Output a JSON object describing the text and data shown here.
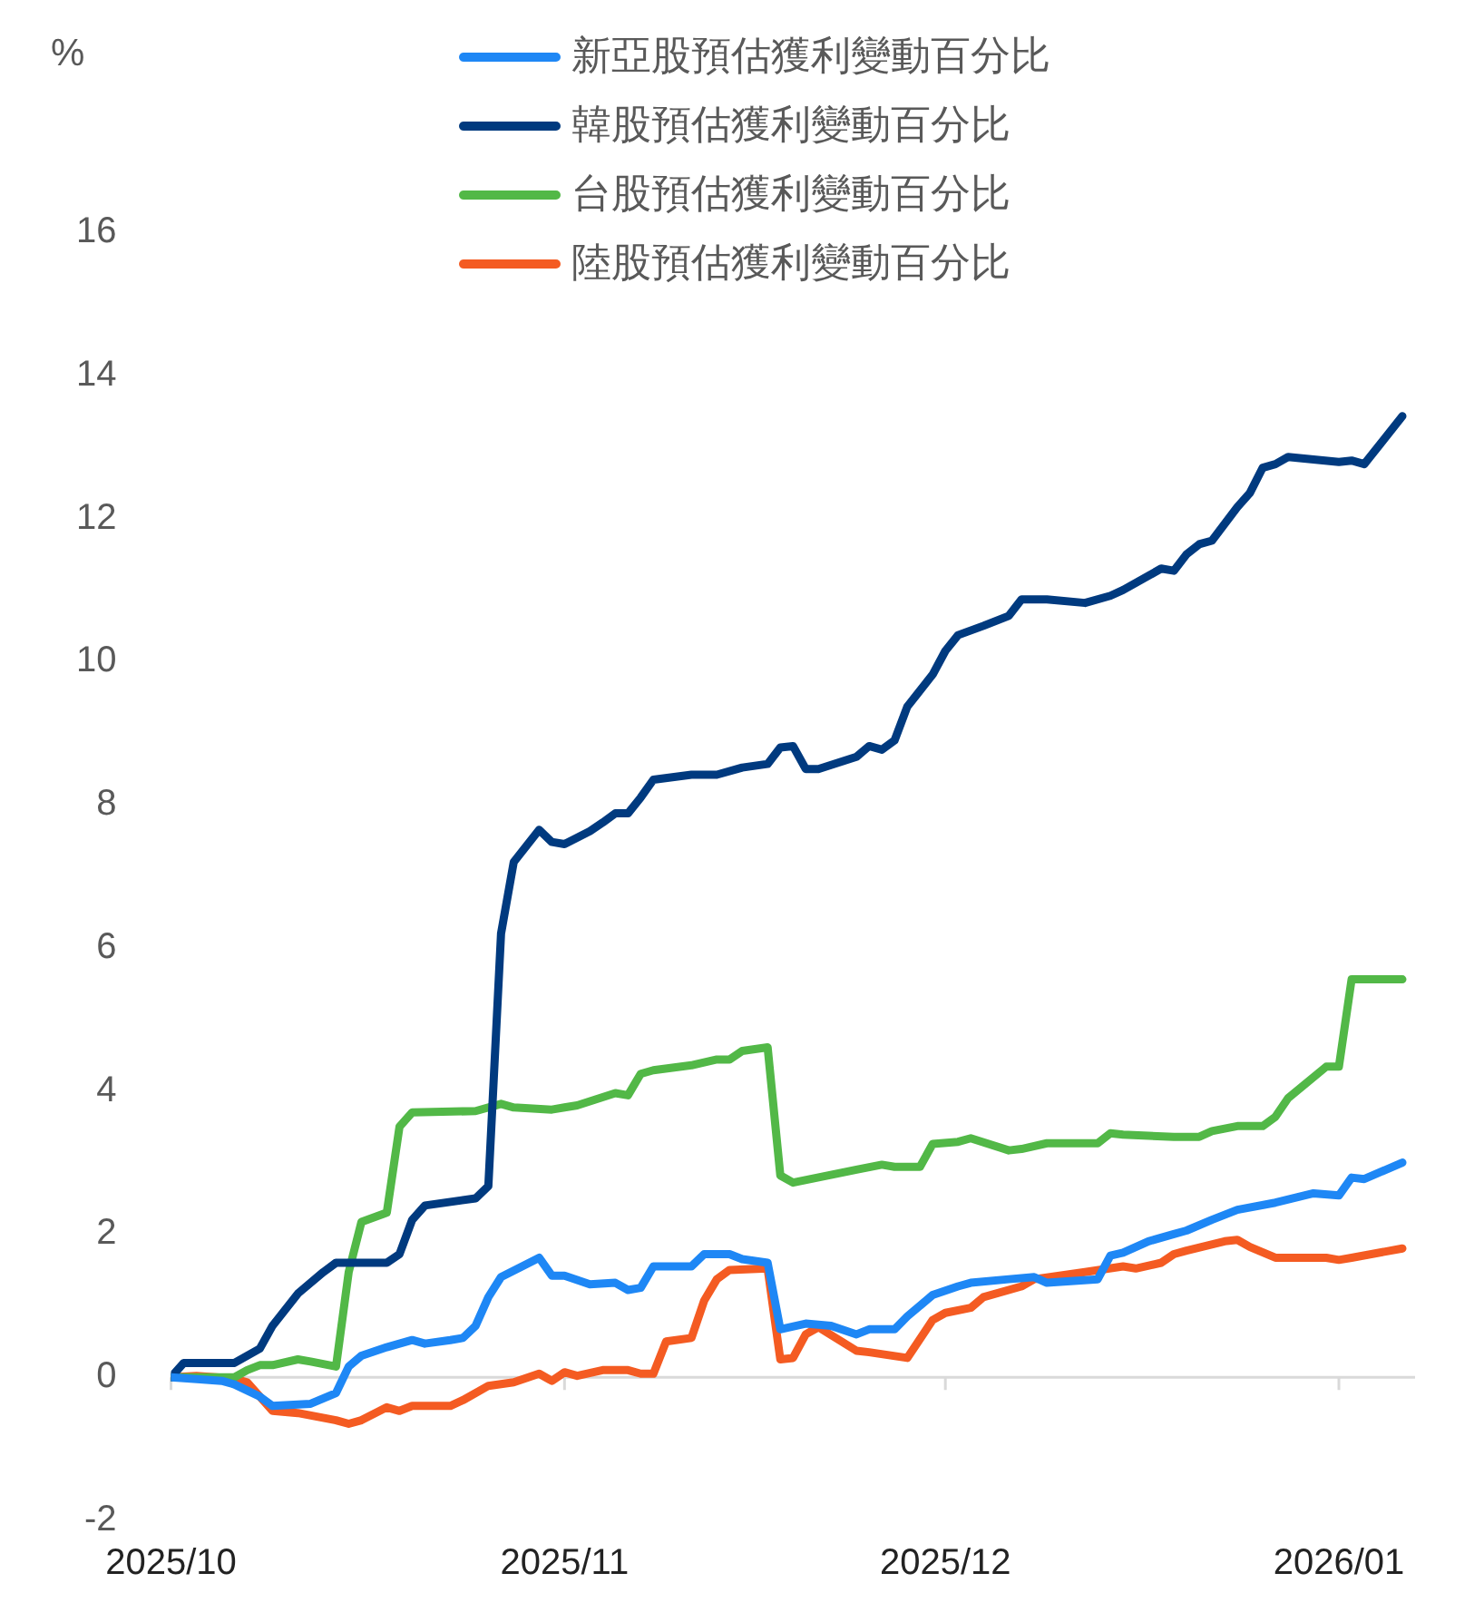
{
  "chart_data": {
    "type": "line",
    "ylabel": "%",
    "xlim": [
      "2025-10-01",
      "2026-01-07"
    ],
    "xticks": [
      {
        "value": "2025-10-01",
        "label": "2025/10"
      },
      {
        "value": "2025-11-01",
        "label": "2025/11"
      },
      {
        "value": "2025-12-01",
        "label": "2025/12"
      },
      {
        "value": "2026-01-01",
        "label": "2026/01"
      }
    ],
    "ylim": [
      -2,
      16
    ],
    "yticks": [
      -2,
      0,
      2,
      4,
      6,
      8,
      10,
      12,
      14,
      16
    ],
    "legend": "top",
    "marker": "none",
    "line_style": "solid",
    "series": [
      {
        "name": "新亞股預估獲利變動百分比",
        "color": "#1e87f5",
        "x": [
          "2025-10-01",
          "2025-10-05",
          "2025-10-06",
          "2025-10-08",
          "2025-10-09",
          "2025-10-12",
          "2025-10-14",
          "2025-10-15",
          "2025-10-16",
          "2025-10-18",
          "2025-10-20",
          "2025-10-21",
          "2025-10-23",
          "2025-10-24",
          "2025-10-25",
          "2025-10-26",
          "2025-10-27",
          "2025-10-30",
          "2025-10-31",
          "2025-11-01",
          "2025-11-03",
          "2025-11-05",
          "2025-11-06",
          "2025-11-07",
          "2025-11-08",
          "2025-11-11",
          "2025-11-12",
          "2025-11-14",
          "2025-11-15",
          "2025-11-17",
          "2025-11-18",
          "2025-11-20",
          "2025-11-22",
          "2025-11-24",
          "2025-11-25",
          "2025-11-27",
          "2025-11-28",
          "2025-11-30",
          "2025-12-02",
          "2025-12-03",
          "2025-12-06",
          "2025-12-08",
          "2025-12-09",
          "2025-12-13",
          "2025-12-14",
          "2025-12-15",
          "2025-12-17",
          "2025-12-19",
          "2025-12-20",
          "2025-12-22",
          "2025-12-24",
          "2025-12-27",
          "2025-12-30",
          "2026-01-01",
          "2026-01-02",
          "2026-01-03",
          "2026-01-06"
        ],
        "values": [
          0,
          -0.05,
          -0.1,
          -0.27,
          -0.4,
          -0.37,
          -0.22,
          0.15,
          0.3,
          0.42,
          0.52,
          0.47,
          0.52,
          0.55,
          0.72,
          1.12,
          1.4,
          1.67,
          1.42,
          1.42,
          1.3,
          1.32,
          1.22,
          1.25,
          1.55,
          1.55,
          1.72,
          1.72,
          1.65,
          1.6,
          0.67,
          0.75,
          0.72,
          0.6,
          0.67,
          0.67,
          0.85,
          1.15,
          1.27,
          1.32,
          1.37,
          1.4,
          1.32,
          1.37,
          1.7,
          1.74,
          1.9,
          2.0,
          2.05,
          2.2,
          2.34,
          2.44,
          2.57,
          2.54,
          2.79,
          2.77,
          3.0
        ]
      },
      {
        "name": "韓股預估獲利變動百分比",
        "color": "#003a7f",
        "x": [
          "2025-10-01",
          "2025-10-02",
          "2025-10-06",
          "2025-10-08",
          "2025-10-09",
          "2025-10-11",
          "2025-10-13",
          "2025-10-14",
          "2025-10-18",
          "2025-10-19",
          "2025-10-20",
          "2025-10-21",
          "2025-10-25",
          "2025-10-26",
          "2025-10-27",
          "2025-10-28",
          "2025-10-30",
          "2025-10-31",
          "2025-11-01",
          "2025-11-03",
          "2025-11-04",
          "2025-11-05",
          "2025-11-06",
          "2025-11-07",
          "2025-11-08",
          "2025-11-11",
          "2025-11-13",
          "2025-11-15",
          "2025-11-17",
          "2025-11-18",
          "2025-11-19",
          "2025-11-20",
          "2025-11-21",
          "2025-11-24",
          "2025-11-25",
          "2025-11-26",
          "2025-11-27",
          "2025-11-28",
          "2025-11-30",
          "2025-12-01",
          "2025-12-02",
          "2025-12-04",
          "2025-12-06",
          "2025-12-07",
          "2025-12-09",
          "2025-12-12",
          "2025-12-14",
          "2025-12-15",
          "2025-12-18",
          "2025-12-19",
          "2025-12-20",
          "2025-12-21",
          "2025-12-22",
          "2025-12-24",
          "2025-12-25",
          "2025-12-26",
          "2025-12-27",
          "2025-12-28",
          "2026-01-01",
          "2026-01-02",
          "2026-01-03",
          "2026-01-06"
        ],
        "values": [
          0,
          0.2,
          0.2,
          0.4,
          0.72,
          1.17,
          1.47,
          1.6,
          1.6,
          1.72,
          2.2,
          2.4,
          2.5,
          2.67,
          6.2,
          7.2,
          7.65,
          7.48,
          7.45,
          7.63,
          7.75,
          7.88,
          7.88,
          8.1,
          8.35,
          8.42,
          8.42,
          8.52,
          8.57,
          8.8,
          8.82,
          8.5,
          8.5,
          8.67,
          8.82,
          8.77,
          8.9,
          9.37,
          9.82,
          10.15,
          10.37,
          10.5,
          10.64,
          10.87,
          10.87,
          10.82,
          10.92,
          11.0,
          11.3,
          11.27,
          11.5,
          11.64,
          11.69,
          12.16,
          12.36,
          12.71,
          12.76,
          12.86,
          12.79,
          12.81,
          12.76,
          13.43
        ]
      },
      {
        "name": "台股預估獲利變動百分比",
        "color": "#52b847",
        "x": [
          "2025-10-01",
          "2025-10-06",
          "2025-10-07",
          "2025-10-08",
          "2025-10-09",
          "2025-10-11",
          "2025-10-12",
          "2025-10-14",
          "2025-10-15",
          "2025-10-16",
          "2025-10-18",
          "2025-10-19",
          "2025-10-20",
          "2025-10-25",
          "2025-10-27",
          "2025-10-28",
          "2025-10-31",
          "2025-11-01",
          "2025-11-02",
          "2025-11-05",
          "2025-11-06",
          "2025-11-07",
          "2025-11-08",
          "2025-11-11",
          "2025-11-13",
          "2025-11-14",
          "2025-11-15",
          "2025-11-17",
          "2025-11-18",
          "2025-11-19",
          "2025-11-24",
          "2025-11-26",
          "2025-11-27",
          "2025-11-29",
          "2025-11-30",
          "2025-12-02",
          "2025-12-03",
          "2025-12-06",
          "2025-12-07",
          "2025-12-09",
          "2025-12-13",
          "2025-12-14",
          "2025-12-15",
          "2025-12-19",
          "2025-12-21",
          "2025-12-22",
          "2025-12-24",
          "2025-12-26",
          "2025-12-27",
          "2025-12-28",
          "2025-12-31",
          "2026-01-01",
          "2026-01-02",
          "2026-01-06"
        ],
        "values": [
          0,
          0,
          0.1,
          0.17,
          0.17,
          0.25,
          0.22,
          0.15,
          1.47,
          2.17,
          2.3,
          3.5,
          3.7,
          3.72,
          3.82,
          3.77,
          3.74,
          3.77,
          3.8,
          3.97,
          3.94,
          4.24,
          4.29,
          4.36,
          4.44,
          4.44,
          4.56,
          4.61,
          2.82,
          2.72,
          2.9,
          2.97,
          2.94,
          2.94,
          3.26,
          3.29,
          3.34,
          3.17,
          3.19,
          3.27,
          3.27,
          3.41,
          3.39,
          3.36,
          3.36,
          3.44,
          3.51,
          3.51,
          3.64,
          3.9,
          4.34,
          4.34,
          5.56,
          5.56
        ]
      },
      {
        "name": "陸股預估獲利變動百分比",
        "color": "#f45b22",
        "x": [
          "2025-10-01",
          "2025-10-03",
          "2025-10-06",
          "2025-10-07",
          "2025-10-09",
          "2025-10-11",
          "2025-10-14",
          "2025-10-15",
          "2025-10-16",
          "2025-10-18",
          "2025-10-19",
          "2025-10-20",
          "2025-10-23",
          "2025-10-24",
          "2025-10-26",
          "2025-10-28",
          "2025-10-30",
          "2025-10-31",
          "2025-11-01",
          "2025-11-02",
          "2025-11-04",
          "2025-11-06",
          "2025-11-07",
          "2025-11-08",
          "2025-11-09",
          "2025-11-11",
          "2025-11-12",
          "2025-11-13",
          "2025-11-14",
          "2025-11-17",
          "2025-11-18",
          "2025-11-19",
          "2025-11-20",
          "2025-11-21",
          "2025-11-24",
          "2025-11-25",
          "2025-11-28",
          "2025-11-30",
          "2025-12-01",
          "2025-12-03",
          "2025-12-04",
          "2025-12-07",
          "2025-12-08",
          "2025-12-12",
          "2025-12-15",
          "2025-12-16",
          "2025-12-18",
          "2025-12-19",
          "2025-12-20",
          "2025-12-23",
          "2025-12-24",
          "2025-12-25",
          "2025-12-27",
          "2025-12-31",
          "2026-01-01",
          "2026-01-02",
          "2026-01-06"
        ],
        "values": [
          0,
          0.02,
          -0.02,
          -0.07,
          -0.47,
          -0.5,
          -0.6,
          -0.65,
          -0.6,
          -0.42,
          -0.47,
          -0.4,
          -0.4,
          -0.32,
          -0.12,
          -0.07,
          0.05,
          -0.05,
          0.07,
          0.02,
          0.1,
          0.1,
          0.05,
          0.05,
          0.5,
          0.55,
          1.07,
          1.37,
          1.5,
          1.52,
          0.25,
          0.27,
          0.6,
          0.7,
          0.37,
          0.35,
          0.27,
          0.8,
          0.9,
          0.97,
          1.12,
          1.27,
          1.37,
          1.47,
          1.55,
          1.52,
          1.6,
          1.72,
          1.77,
          1.9,
          1.92,
          1.82,
          1.67,
          1.67,
          1.64,
          1.67,
          1.8
        ]
      }
    ]
  }
}
